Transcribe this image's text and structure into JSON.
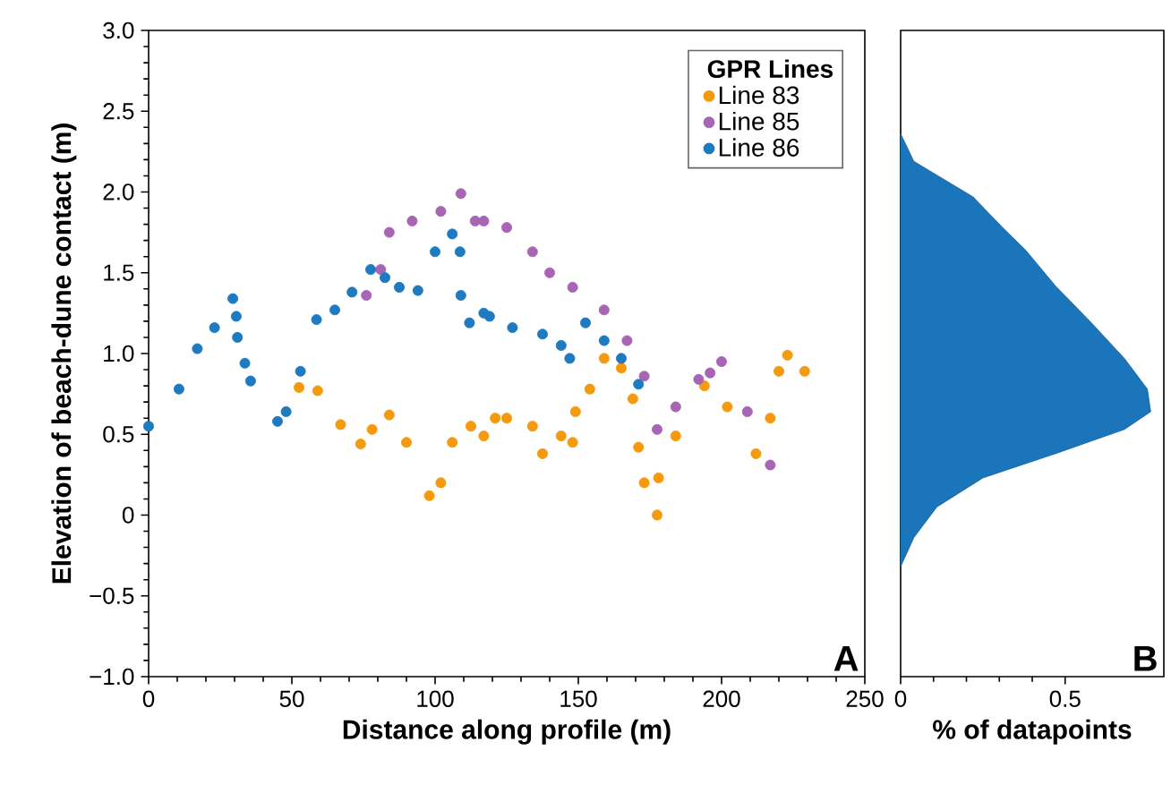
{
  "chart_data": [
    {
      "type": "scatter",
      "xlabel": "Distance along profile (m)",
      "ylabel": "Elevation of beach-dune contact (m)",
      "legend_title": "GPR Lines",
      "legend": "top right",
      "annotations": [
        "A"
      ],
      "xlim": [
        0,
        250
      ],
      "xticks": [
        0,
        50,
        100,
        150,
        200,
        250
      ],
      "ylim": [
        -1,
        3
      ],
      "yticks": [
        {
          "value": -1,
          "label": "−1.0"
        },
        {
          "value": -0.5,
          "label": "−0.5"
        },
        0,
        {
          "value": 0.5,
          "label": "0.5"
        },
        {
          "value": 1,
          "label": "1.0"
        },
        {
          "value": 1.5,
          "label": "1.5"
        },
        {
          "value": 2,
          "label": "2.0"
        },
        {
          "value": 2.5,
          "label": "2.5"
        },
        {
          "value": 3,
          "label": "3.0"
        }
      ],
      "series": [
        {
          "name": "Line 83",
          "color": "#f59a0c",
          "x": [
            52.5,
            59,
            67,
            74,
            78,
            84,
            90,
            98,
            102,
            106,
            112.5,
            117,
            121,
            125,
            134,
            137.5,
            144,
            148,
            149,
            154,
            159,
            165,
            169,
            171,
            173,
            177.5,
            178,
            184,
            194,
            202,
            212,
            217,
            220,
            223,
            229
          ],
          "values": [
            0.79,
            0.77,
            0.56,
            0.44,
            0.53,
            0.62,
            0.45,
            0.12,
            0.2,
            0.45,
            0.55,
            0.49,
            0.6,
            0.6,
            0.55,
            0.38,
            0.49,
            0.45,
            0.64,
            0.78,
            0.97,
            0.91,
            0.72,
            0.42,
            0.2,
            0.0,
            0.23,
            0.49,
            0.8,
            0.67,
            0.38,
            0.6,
            0.89,
            0.99,
            0.89
          ]
        },
        {
          "name": "Line 85",
          "color": "#a865b5",
          "x": [
            76,
            81,
            84,
            92,
            102,
            109,
            114,
            117,
            125,
            134,
            140,
            148,
            159,
            167,
            173,
            177.5,
            184,
            192,
            196,
            200,
            209,
            217
          ],
          "values": [
            1.36,
            1.52,
            1.75,
            1.82,
            1.88,
            1.99,
            1.82,
            1.82,
            1.78,
            1.63,
            1.5,
            1.41,
            1.27,
            1.08,
            0.86,
            0.53,
            0.67,
            0.84,
            0.88,
            0.95,
            0.64,
            0.31
          ]
        },
        {
          "name": "Line 86",
          "color": "#1f7bc0",
          "x": [
            0,
            10.6,
            17,
            23,
            29.4,
            30.6,
            31,
            33.6,
            35.6,
            45,
            48,
            53,
            58.6,
            65,
            71,
            77.5,
            82.5,
            87.5,
            94,
            100,
            106,
            108.7,
            109,
            112,
            117,
            119,
            127,
            137.5,
            144,
            147,
            152.5,
            159,
            165,
            171
          ],
          "values": [
            0.55,
            0.78,
            1.03,
            1.16,
            1.34,
            1.23,
            1.1,
            0.94,
            0.83,
            0.58,
            0.64,
            0.89,
            1.21,
            1.27,
            1.38,
            1.52,
            1.47,
            1.41,
            1.39,
            1.63,
            1.74,
            1.63,
            1.36,
            1.19,
            1.25,
            1.23,
            1.16,
            1.12,
            1.05,
            0.97,
            1.19,
            1.08,
            0.97,
            0.81
          ]
        }
      ]
    },
    {
      "type": "area",
      "orientation": "horizontal",
      "xlabel": "% of datapoints",
      "annotations": [
        "B"
      ],
      "tick_labels": "x",
      "xlim": [
        0,
        0.8
      ],
      "xticks": [
        0,
        0.5
      ],
      "ylim": [
        -1,
        3
      ],
      "series": [
        {
          "color": "#1b75bb",
          "x": [
            2.36,
            2.19,
            2.08,
            1.97,
            1.78,
            1.64,
            1.42,
            1.19,
            0.97,
            0.78,
            0.64,
            0.53,
            0.38,
            0.23,
            0.05,
            -0.14,
            -0.32
          ],
          "values": [
            0,
            0.04,
            0.13,
            0.22,
            0.31,
            0.38,
            0.47,
            0.58,
            0.68,
            0.75,
            0.76,
            0.68,
            0.47,
            0.25,
            0.11,
            0.04,
            0
          ]
        }
      ]
    }
  ]
}
